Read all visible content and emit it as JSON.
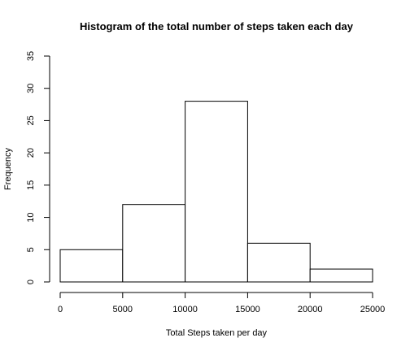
{
  "chart_data": {
    "type": "bar",
    "title": "Histogram of the total number of steps taken each day",
    "xlabel": "Total Steps taken per day",
    "ylabel": "Frequency",
    "bins": [
      {
        "from": 0,
        "to": 5000,
        "count": 5
      },
      {
        "from": 5000,
        "to": 10000,
        "count": 12
      },
      {
        "from": 10000,
        "to": 15000,
        "count": 28
      },
      {
        "from": 15000,
        "to": 20000,
        "count": 6
      },
      {
        "from": 20000,
        "to": 25000,
        "count": 2
      }
    ],
    "xlim": [
      0,
      25000
    ],
    "ylim": [
      0,
      35
    ],
    "xticks": [
      "0",
      "5000",
      "10000",
      "15000",
      "20000",
      "25000"
    ],
    "yticks": [
      "0",
      "5",
      "10",
      "15",
      "20",
      "25",
      "30",
      "35"
    ],
    "grid": false,
    "bar_fill": "#ffffff",
    "bar_stroke": "#000000"
  }
}
